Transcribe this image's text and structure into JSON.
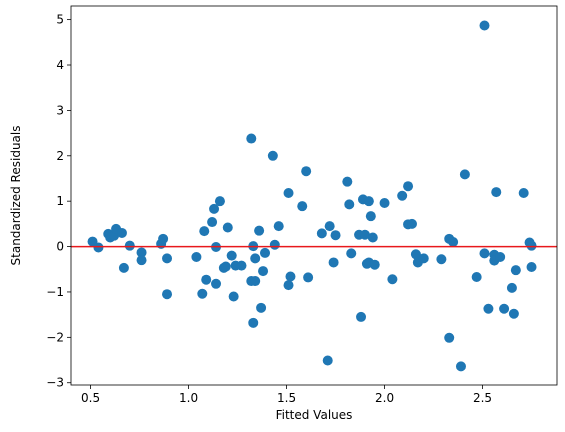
{
  "chart_data": {
    "type": "scatter",
    "title": "",
    "xlabel": "Fitted Values",
    "ylabel": "Standardized Residuals",
    "xlim": [
      0.4,
      2.88
    ],
    "ylim": [
      -3.05,
      5.3
    ],
    "xticks": [
      0.5,
      1.0,
      1.5,
      2.0,
      2.5
    ],
    "xtick_labels": [
      "0.5",
      "1.0",
      "1.5",
      "2.0",
      "2.5"
    ],
    "yticks": [
      -3,
      -2,
      -1,
      0,
      1,
      2,
      3,
      4,
      5
    ],
    "ytick_labels": [
      "−3",
      "−2",
      "−1",
      "0",
      "1",
      "2",
      "3",
      "4",
      "5"
    ],
    "grid": false,
    "point_color": "#1f77b4",
    "reference_line": {
      "y": 0,
      "color": "#e8191c"
    },
    "points": [
      [
        0.51,
        0.11
      ],
      [
        0.54,
        -0.02
      ],
      [
        0.59,
        0.28
      ],
      [
        0.6,
        0.2
      ],
      [
        0.62,
        0.24
      ],
      [
        0.63,
        0.39
      ],
      [
        0.66,
        0.3
      ],
      [
        0.67,
        -0.47
      ],
      [
        0.7,
        0.02
      ],
      [
        0.76,
        -0.13
      ],
      [
        0.76,
        -0.3
      ],
      [
        0.86,
        0.06
      ],
      [
        0.87,
        0.17
      ],
      [
        0.89,
        -0.26
      ],
      [
        0.89,
        -1.05
      ],
      [
        1.04,
        -0.23
      ],
      [
        1.07,
        -1.04
      ],
      [
        1.08,
        0.34
      ],
      [
        1.09,
        -0.73
      ],
      [
        1.12,
        0.54
      ],
      [
        1.13,
        0.83
      ],
      [
        1.14,
        -0.82
      ],
      [
        1.14,
        -0.01
      ],
      [
        1.16,
        1.0
      ],
      [
        1.18,
        -0.47
      ],
      [
        1.19,
        -0.44
      ],
      [
        1.2,
        0.42
      ],
      [
        1.22,
        -0.2
      ],
      [
        1.23,
        -1.1
      ],
      [
        1.24,
        -0.42
      ],
      [
        1.27,
        -0.42
      ],
      [
        1.32,
        2.38
      ],
      [
        1.32,
        -0.76
      ],
      [
        1.33,
        -1.68
      ],
      [
        1.33,
        0.01
      ],
      [
        1.34,
        -0.76
      ],
      [
        1.34,
        -0.26
      ],
      [
        1.36,
        0.35
      ],
      [
        1.37,
        -1.35
      ],
      [
        1.38,
        -0.54
      ],
      [
        1.39,
        -0.14
      ],
      [
        1.43,
        2.0
      ],
      [
        1.44,
        0.04
      ],
      [
        1.46,
        0.45
      ],
      [
        1.51,
        1.18
      ],
      [
        1.51,
        -0.85
      ],
      [
        1.52,
        -0.66
      ],
      [
        1.58,
        0.89
      ],
      [
        1.6,
        1.66
      ],
      [
        1.61,
        -0.68
      ],
      [
        1.68,
        0.29
      ],
      [
        1.71,
        -2.51
      ],
      [
        1.72,
        0.45
      ],
      [
        1.74,
        -0.35
      ],
      [
        1.75,
        0.25
      ],
      [
        1.81,
        1.43
      ],
      [
        1.82,
        0.93
      ],
      [
        1.83,
        -0.15
      ],
      [
        1.87,
        0.26
      ],
      [
        1.88,
        -1.55
      ],
      [
        1.89,
        1.04
      ],
      [
        1.9,
        0.26
      ],
      [
        1.91,
        -0.38
      ],
      [
        1.92,
        1.0
      ],
      [
        1.92,
        -0.35
      ],
      [
        1.93,
        0.67
      ],
      [
        1.94,
        0.2
      ],
      [
        1.95,
        -0.4
      ],
      [
        2.0,
        0.96
      ],
      [
        2.04,
        -0.72
      ],
      [
        2.09,
        1.12
      ],
      [
        2.12,
        0.49
      ],
      [
        2.12,
        1.33
      ],
      [
        2.14,
        0.5
      ],
      [
        2.16,
        -0.17
      ],
      [
        2.17,
        -0.35
      ],
      [
        2.18,
        -0.28
      ],
      [
        2.2,
        -0.26
      ],
      [
        2.29,
        -0.28
      ],
      [
        2.33,
        -2.01
      ],
      [
        2.33,
        0.17
      ],
      [
        2.35,
        0.1
      ],
      [
        2.39,
        -2.64
      ],
      [
        2.41,
        1.59
      ],
      [
        2.47,
        -0.67
      ],
      [
        2.51,
        4.87
      ],
      [
        2.51,
        -0.15
      ],
      [
        2.53,
        -1.37
      ],
      [
        2.56,
        -0.18
      ],
      [
        2.56,
        -0.31
      ],
      [
        2.57,
        1.2
      ],
      [
        2.59,
        -0.23
      ],
      [
        2.61,
        -1.37
      ],
      [
        2.65,
        -0.91
      ],
      [
        2.66,
        -1.48
      ],
      [
        2.67,
        -0.52
      ],
      [
        2.71,
        1.18
      ],
      [
        2.74,
        0.09
      ],
      [
        2.75,
        0.02
      ],
      [
        2.75,
        -0.45
      ]
    ]
  }
}
